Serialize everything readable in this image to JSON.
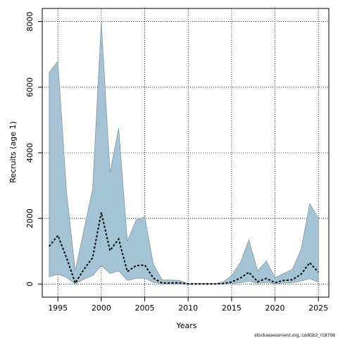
{
  "chart_data": {
    "type": "area",
    "title": "",
    "xlabel": "Years",
    "ylabel": "Recruits (age 1)",
    "xlim": [
      1993.2,
      2026.2
    ],
    "ylim": [
      -400,
      8400
    ],
    "xticks": [
      1995,
      2000,
      2005,
      2010,
      2015,
      2020,
      2025
    ],
    "yticks": [
      0,
      2000,
      4000,
      6000,
      8000
    ],
    "grid": true,
    "colors": {
      "band": "#a4c3d4",
      "band_edge": "#7d8f9b",
      "median": "#000000",
      "grid": "#000000"
    },
    "x": [
      1994,
      1995,
      1996,
      1997,
      1998,
      1999,
      2000,
      2001,
      2002,
      2003,
      2004,
      2005,
      2006,
      2007,
      2008,
      2009,
      2010,
      2011,
      2012,
      2013,
      2014,
      2015,
      2016,
      2017,
      2018,
      2019,
      2020,
      2021,
      2022,
      2023,
      2024,
      2025
    ],
    "series": [
      {
        "role": "upper",
        "values": [
          6450,
          6800,
          2800,
          400,
          1650,
          2900,
          8000,
          3400,
          4750,
          1300,
          1950,
          2050,
          600,
          130,
          120,
          110,
          15,
          15,
          15,
          15,
          60,
          250,
          650,
          1350,
          400,
          700,
          200,
          320,
          450,
          1050,
          2450,
          2000
        ]
      },
      {
        "role": "median",
        "values": [
          1150,
          1480,
          800,
          30,
          450,
          800,
          2180,
          1020,
          1370,
          380,
          560,
          580,
          180,
          30,
          35,
          35,
          3,
          3,
          3,
          3,
          15,
          60,
          180,
          360,
          70,
          170,
          40,
          110,
          130,
          300,
          650,
          360
        ]
      },
      {
        "role": "lower",
        "values": [
          220,
          300,
          200,
          0,
          150,
          250,
          560,
          320,
          400,
          110,
          170,
          180,
          50,
          5,
          5,
          5,
          0,
          0,
          0,
          0,
          0,
          10,
          40,
          90,
          20,
          50,
          10,
          30,
          40,
          90,
          160,
          60
        ]
      }
    ]
  },
  "credit_text": "stockassessment.org, codGb2_r19708"
}
